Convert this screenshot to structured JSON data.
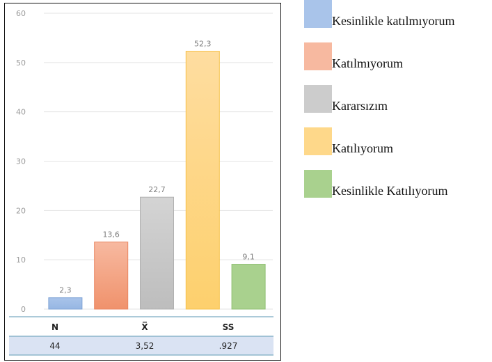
{
  "chart_data": {
    "type": "bar",
    "categories": [
      "Kesinlikle katılmıyorum",
      "Katılmıyorum",
      "Kararsızım",
      "Katılıyorum",
      "Kesinlikle Katılıyorum"
    ],
    "values": [
      2.3,
      13.6,
      22.7,
      52.3,
      9.1
    ],
    "value_labels": [
      "2,3",
      "13,6",
      "22,7",
      "52,3",
      "9,1"
    ],
    "ylim": [
      0,
      60
    ],
    "yticks": [
      "0",
      "10",
      "20",
      "30",
      "40",
      "50",
      "60"
    ],
    "grid": true,
    "legend_position": "right",
    "colors": [
      {
        "fill_top": "#a9c4ea",
        "fill_bottom": "#96b6e3",
        "stroke": "#7fa3d6"
      },
      {
        "fill_top": "#f7b9a0",
        "fill_bottom": "#f0926c",
        "stroke": "#e98560"
      },
      {
        "fill_top": "#d4d4d4",
        "fill_bottom": "#bdbdbd",
        "stroke": "#b0b0b0"
      },
      {
        "fill_top": "#fedda0",
        "fill_bottom": "#fdd06d",
        "stroke": "#f7c24a"
      },
      {
        "fill_top": "#a9d18e",
        "fill_bottom": "#a9d18e",
        "stroke": "#8fbf72"
      }
    ]
  },
  "stats_table": {
    "headers": [
      "N",
      "X̅",
      "SS"
    ],
    "values": [
      "44",
      "3,52",
      ".927"
    ],
    "row_color": "#dae3f3",
    "line_color": "#7aaac2"
  },
  "legend": {
    "items": [
      {
        "label": "Kesinlikle katılmıyorum",
        "color": "#a9c4ea"
      },
      {
        "label": "Katılmıyorum",
        "color": "#f7b9a0"
      },
      {
        "label": "Kararsızım",
        "color": "#cccccc"
      },
      {
        "label": "Katılıyorum",
        "color": "#fed88a"
      },
      {
        "label": "Kesinlikle Katılıyorum",
        "color": "#a9d18e"
      }
    ]
  }
}
